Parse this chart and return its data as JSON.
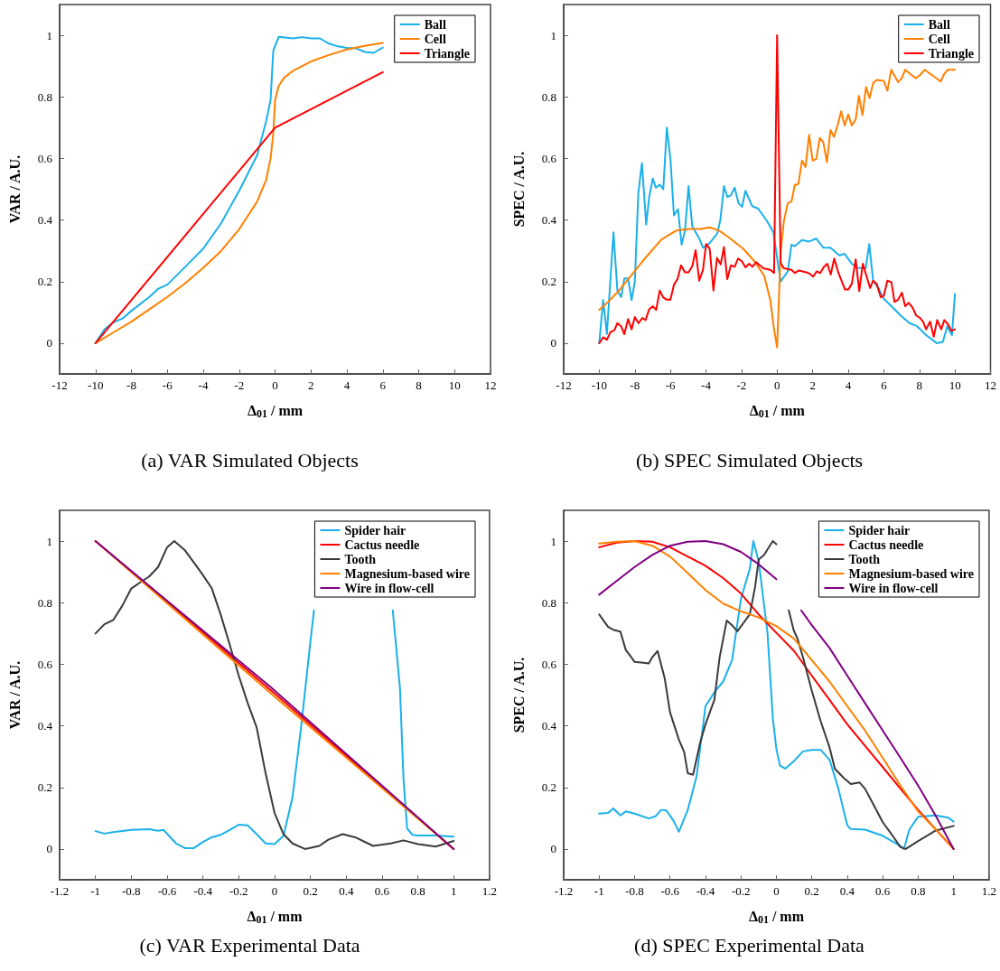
{
  "chart_data": [
    {
      "type": "line",
      "title": "(a) VAR Simulated Objects",
      "xlabel": "Δ$_{01}$ / mm",
      "ylabel": "VAR / A.U.",
      "xlim": [
        -12,
        12
      ],
      "xticks": [
        -12,
        -10,
        -8,
        -6,
        -4,
        -2,
        0,
        2,
        4,
        6,
        8,
        10,
        12
      ],
      "ylim": [
        -0.1,
        1.1
      ],
      "yticks": [
        0,
        0.2,
        0.4,
        0.6,
        0.8,
        1
      ],
      "grid": false,
      "legend": "top right",
      "line_style": "solid",
      "series": [
        {
          "name": "Ball",
          "color": "#1ab0ea",
          "x": [
            -10,
            -9.5,
            -9,
            -8.5,
            -8,
            -7,
            -6.5,
            -6,
            -5,
            -4,
            -3,
            -2,
            -1,
            -0.5,
            -0.25,
            -0.1,
            0.2,
            1,
            1.5,
            2,
            2.5,
            3,
            3.5,
            4,
            4.5,
            5,
            5.5,
            6
          ],
          "values": [
            0,
            0.045,
            0.068,
            0.08,
            0.105,
            0.15,
            0.177,
            0.19,
            0.248,
            0.307,
            0.39,
            0.495,
            0.61,
            0.72,
            0.79,
            0.95,
            0.995,
            0.99,
            0.994,
            0.99,
            0.99,
            0.973,
            0.964,
            0.959,
            0.958,
            0.946,
            0.943,
            0.96
          ]
        },
        {
          "name": "Cell",
          "color": "#ff8000",
          "x": [
            -10,
            -9,
            -8,
            -7,
            -6,
            -5,
            -4,
            -3,
            -2,
            -1,
            -0.5,
            -0.25,
            -0.1,
            0,
            0.2,
            0.5,
            1,
            2,
            3,
            4,
            5,
            6
          ],
          "values": [
            0,
            0.035,
            0.07,
            0.11,
            0.15,
            0.195,
            0.245,
            0.3,
            0.37,
            0.46,
            0.53,
            0.6,
            0.68,
            0.79,
            0.835,
            0.862,
            0.885,
            0.915,
            0.936,
            0.954,
            0.966,
            0.975
          ]
        },
        {
          "name": "Triangle",
          "color": "#ff0000",
          "x": [
            -10,
            0,
            6
          ],
          "values": [
            0,
            0.7,
            0.88
          ]
        }
      ]
    },
    {
      "type": "line",
      "title": "(b) SPEC Simulated Objects",
      "xlabel": "Δ$_{01}$ / mm",
      "ylabel": "SPEC / A.U.",
      "xlim": [
        -12,
        12
      ],
      "xticks": [
        -12,
        -10,
        -8,
        -6,
        -4,
        -2,
        0,
        2,
        4,
        6,
        8,
        10,
        12
      ],
      "ylim": [
        -0.1,
        1.1
      ],
      "yticks": [
        0,
        0.2,
        0.4,
        0.6,
        0.8,
        1
      ],
      "grid": false,
      "legend": "top right",
      "line_style": "solid",
      "series": [
        {
          "name": "Ball",
          "color": "#1ab0ea",
          "x": [
            -10,
            -9.78,
            -9.57,
            -9.2,
            -8.98,
            -8.77,
            -8.59,
            -8.38,
            -8.18,
            -8,
            -7.8,
            -7.6,
            -7.36,
            -7.19,
            -6.99,
            -6.82,
            -6.6,
            -6.4,
            -6.2,
            -6,
            -5.8,
            -5.57,
            -5.37,
            -5.18,
            -4.98,
            -4.77,
            -4.38,
            -4.16,
            -3.79,
            -3.36,
            -3.19,
            -2.99,
            -2.8,
            -2.6,
            -2.39,
            -2.17,
            -1.97,
            -1.78,
            -1.4,
            -1.06,
            -0.55,
            -0.21,
            0.2,
            0.6,
            0.81,
            1,
            1.4,
            1.8,
            2.2,
            2.6,
            3,
            3.5,
            3.8,
            4.2,
            4.55,
            4.98,
            5.18,
            5.4,
            5.74,
            6,
            6.43,
            6.94,
            7.45,
            7.87,
            8.38,
            8.98,
            9.32,
            9.57,
            9.83,
            10
          ],
          "values": [
            0,
            0.14,
            0.03,
            0.36,
            0.17,
            0.15,
            0.21,
            0.21,
            0.14,
            0.2,
            0.49,
            0.585,
            0.385,
            0.475,
            0.535,
            0.505,
            0.515,
            0.5,
            0.7,
            0.6,
            0.415,
            0.435,
            0.32,
            0.365,
            0.51,
            0.38,
            0.34,
            0.31,
            0.325,
            0.357,
            0.4,
            0.51,
            0.475,
            0.48,
            0.505,
            0.455,
            0.443,
            0.495,
            0.445,
            0.437,
            0.395,
            0.36,
            0.2,
            0.233,
            0.32,
            0.315,
            0.335,
            0.33,
            0.34,
            0.31,
            0.31,
            0.285,
            0.29,
            0.258,
            0.245,
            0.243,
            0.322,
            0.203,
            0.174,
            0.144,
            0.12,
            0.09,
            0.065,
            0.055,
            0.026,
            0,
            0.004,
            0.055,
            0.026,
            0.16
          ]
        },
        {
          "name": "Cell",
          "color": "#ff8000",
          "x": [
            -10,
            -9.57,
            -8.9,
            -8.2,
            -7.36,
            -6.5,
            -5.66,
            -4.98,
            -4.3,
            -3.79,
            -3.28,
            -2.77,
            -1.91,
            -1.23,
            -0.72,
            -0.38,
            -0.17,
            0,
            0.2,
            0.38,
            0.6,
            0.81,
            1,
            1.2,
            1.4,
            1.6,
            1.8,
            2,
            2.2,
            2.4,
            2.6,
            2.8,
            3,
            3.2,
            3.4,
            3.6,
            3.8,
            4,
            4.2,
            4.42,
            4.6,
            4.8,
            5,
            5.2,
            5.4,
            5.6,
            6,
            6.2,
            6.42,
            6.8,
            7,
            7.2,
            7.8,
            8.05,
            8.3,
            9.2,
            9.4,
            9.6,
            10
          ],
          "values": [
            0.108,
            0.13,
            0.17,
            0.22,
            0.28,
            0.337,
            0.366,
            0.371,
            0.371,
            0.376,
            0.366,
            0.346,
            0.307,
            0.263,
            0.218,
            0.139,
            0.045,
            -0.014,
            0.297,
            0.396,
            0.455,
            0.46,
            0.514,
            0.517,
            0.593,
            0.572,
            0.677,
            0.593,
            0.598,
            0.667,
            0.652,
            0.588,
            0.692,
            0.67,
            0.707,
            0.753,
            0.707,
            0.743,
            0.707,
            0.727,
            0.803,
            0.741,
            0.832,
            0.796,
            0.845,
            0.855,
            0.852,
            0.82,
            0.888,
            0.848,
            0.86,
            0.888,
            0.86,
            0.872,
            0.888,
            0.85,
            0.875,
            0.888,
            0.888
          ]
        },
        {
          "name": "Triangle",
          "color": "#ff0000",
          "x": [
            -10,
            -9.78,
            -9.57,
            -9.37,
            -9.15,
            -8.98,
            -8.77,
            -8.59,
            -8.38,
            -8.18,
            -8,
            -7.79,
            -7.58,
            -7.4,
            -7.19,
            -6.99,
            -6.8,
            -6.6,
            -6.41,
            -6.2,
            -6,
            -5.8,
            -5.6,
            -5.4,
            -5.18,
            -4.98,
            -4.77,
            -4.58,
            -4.38,
            -4.17,
            -3.99,
            -3.79,
            -3.58,
            -3.38,
            -3.17,
            -2.99,
            -2.8,
            -2.6,
            -2.39,
            -2.19,
            -1.98,
            -1.78,
            -1.57,
            -1.39,
            -1.18,
            -0.97,
            -0.77,
            -0.38,
            -0.17,
            0,
            0.2,
            0.38,
            0.81,
            1,
            1.23,
            1.63,
            1.83,
            2.03,
            2.22,
            2.43,
            2.63,
            2.82,
            3.02,
            3.21,
            3.45,
            3.82,
            4,
            4.2,
            4.42,
            4.62,
            4.82,
            5,
            5.23,
            5.4,
            5.6,
            5.83,
            6,
            6.2,
            6.43,
            6.6,
            6.8,
            7.02,
            7.2,
            7.4,
            7.62,
            7.82,
            8.03,
            8.21,
            8.38,
            8.6,
            8.81,
            9,
            9.23,
            9.4,
            9.6,
            9.8,
            10
          ],
          "values": [
            0,
            0.019,
            0.011,
            0.036,
            0.042,
            0.065,
            0.055,
            0.029,
            0.078,
            0.045,
            0.085,
            0.065,
            0.082,
            0.075,
            0.11,
            0.12,
            0.108,
            0.171,
            0.149,
            0.141,
            0.141,
            0.19,
            0.208,
            0.253,
            0.23,
            0.23,
            0.25,
            0.302,
            0.203,
            0.238,
            0.322,
            0.307,
            0.171,
            0.277,
            0.256,
            0.312,
            0.208,
            0.253,
            0.248,
            0.275,
            0.266,
            0.246,
            0.258,
            0.248,
            0.263,
            0.253,
            0.243,
            0.238,
            0.228,
            1,
            0.26,
            0.243,
            0.238,
            0.228,
            0.236,
            0.23,
            0.226,
            0.216,
            0.233,
            0.228,
            0.248,
            0.258,
            0.223,
            0.275,
            0.228,
            0.174,
            0.174,
            0.193,
            0.272,
            0.169,
            0.258,
            0.223,
            0.179,
            0.203,
            0.193,
            0.149,
            0.154,
            0.203,
            0.198,
            0.134,
            0.141,
            0.164,
            0.12,
            0.131,
            0.115,
            0.09,
            0.082,
            0.07,
            0.045,
            0.07,
            0.021,
            0.075,
            0.045,
            0.075,
            0.062,
            0.04,
            0.045
          ]
        }
      ]
    },
    {
      "type": "line",
      "title": "(c) VAR Experimental Data",
      "xlabel": "Δ$_{01}$ / mm",
      "ylabel": "VAR / A.U.",
      "xlim": [
        -1.2,
        1.2
      ],
      "xticks": [
        -1.2,
        -1,
        -0.8,
        -0.6,
        -0.4,
        -0.2,
        0,
        0.2,
        0.4,
        0.6,
        0.8,
        1,
        1.2
      ],
      "ylim": [
        -0.1,
        1.1
      ],
      "yticks": [
        0,
        0.2,
        0.4,
        0.6,
        0.8,
        1
      ],
      "grid": false,
      "legend": "top right",
      "line_style": "solid",
      "series": [
        {
          "name": "Spider hair",
          "color": "#1ab0ea",
          "x": [
            -1,
            -0.95,
            -0.9,
            -0.8,
            -0.7,
            -0.65,
            -0.62,
            -0.55,
            -0.5,
            -0.45,
            -0.4,
            -0.35,
            -0.3,
            -0.25,
            -0.2,
            -0.15,
            -0.1,
            -0.05,
            0,
            0.05,
            0.1,
            0.15,
            0.2,
            0.22,
            0.45,
            0.66,
            0.7,
            0.72,
            0.74,
            0.77,
            0.8,
            0.9,
            1
          ],
          "values": [
            0.058,
            0.05,
            0.055,
            0.062,
            0.064,
            0.059,
            0.062,
            0.018,
            0.003,
            0.003,
            0.023,
            0.038,
            0.046,
            0.062,
            0.079,
            0.077,
            0.048,
            0.018,
            0.016,
            0.043,
            0.167,
            0.405,
            0.673,
            0.775,
            null,
            0.775,
            0.524,
            0.226,
            0.067,
            0.046,
            0.044,
            0.044,
            0.04
          ]
        },
        {
          "name": "Cactus needle",
          "color": "#ff0000",
          "x": [
            -1,
            0,
            1
          ],
          "values": [
            1,
            0.505,
            0
          ]
        },
        {
          "name": "Tooth",
          "color": "#3a3a3a",
          "x": [
            -1,
            -0.95,
            -0.9,
            -0.85,
            -0.8,
            -0.75,
            -0.7,
            -0.65,
            -0.6,
            -0.56,
            -0.5,
            -0.45,
            -0.4,
            -0.35,
            -0.3,
            -0.25,
            -0.2,
            -0.15,
            -0.1,
            -0.05,
            0,
            0.05,
            0.1,
            0.17,
            0.25,
            0.3,
            0.38,
            0.45,
            0.55,
            0.65,
            0.72,
            0.8,
            0.9,
            1
          ],
          "values": [
            0.7,
            0.73,
            0.744,
            0.79,
            0.846,
            0.866,
            0.885,
            0.916,
            0.98,
            1,
            0.97,
            0.93,
            0.89,
            0.846,
            0.76,
            0.663,
            0.563,
            0.474,
            0.395,
            0.246,
            0.117,
            0.048,
            0.018,
            0,
            0.01,
            0.03,
            0.048,
            0.038,
            0.01,
            0.018,
            0.028,
            0.016,
            0.008,
            0.026
          ]
        },
        {
          "name": "Magnesium-based wire",
          "color": "#ff8000",
          "x": [
            -1,
            0,
            1
          ],
          "values": [
            1,
            0.495,
            0
          ]
        },
        {
          "name": "Wire in flow-cell",
          "color": "#800080",
          "x": [
            -1,
            0,
            1
          ],
          "values": [
            1,
            0.515,
            0
          ]
        }
      ]
    },
    {
      "type": "line",
      "title": "(d) SPEC Experimental Data",
      "xlabel": "Δ$_{01}$ / mm",
      "ylabel": "SPEC / A.U.",
      "xlim": [
        -1.2,
        1.2
      ],
      "xticks": [
        -1.2,
        -1,
        -0.8,
        -0.6,
        -0.4,
        -0.2,
        0,
        0.2,
        0.4,
        0.6,
        0.8,
        1,
        1.2
      ],
      "ylim": [
        -0.1,
        1.1
      ],
      "yticks": [
        0,
        0.2,
        0.4,
        0.6,
        0.8,
        1
      ],
      "grid": false,
      "legend": "top right",
      "line_style": "solid",
      "series": [
        {
          "name": "Spider hair",
          "color": "#1ab0ea",
          "x": [
            -1,
            -0.95,
            -0.92,
            -0.88,
            -0.85,
            -0.8,
            -0.72,
            -0.68,
            -0.65,
            -0.62,
            -0.58,
            -0.55,
            -0.5,
            -0.45,
            -0.4,
            -0.35,
            -0.3,
            -0.25,
            -0.2,
            -0.15,
            -0.13,
            -0.1,
            -0.05,
            -0.02,
            0,
            0.02,
            0.05,
            0.1,
            0.15,
            0.2,
            0.25,
            0.3,
            0.35,
            0.4,
            0.42,
            0.5,
            0.6,
            0.7,
            0.72,
            0.75,
            0.8,
            0.9,
            0.97,
            1
          ],
          "values": [
            0.115,
            0.117,
            0.132,
            0.109,
            0.122,
            0.115,
            0.099,
            0.107,
            0.127,
            0.125,
            0.092,
            0.056,
            0.127,
            0.236,
            0.464,
            0.509,
            0.544,
            0.613,
            0.812,
            0.91,
            1,
            0.935,
            0.702,
            0.425,
            0.325,
            0.271,
            0.261,
            0.286,
            0.317,
            0.322,
            0.322,
            0.29,
            0.196,
            0.077,
            0.065,
            0.063,
            0.043,
            0.01,
            0,
            0.063,
            0.105,
            0.109,
            0.102,
            0.089
          ]
        },
        {
          "name": "Cactus needle",
          "color": "#ff0000",
          "x": [
            -1,
            -0.9,
            -0.8,
            -0.7,
            -0.6,
            -0.5,
            -0.4,
            -0.3,
            -0.2,
            -0.1,
            0,
            0.1,
            0.2,
            0.3,
            0.4,
            0.5,
            0.6,
            0.7,
            0.8,
            0.9,
            1
          ],
          "values": [
            0.98,
            0.995,
            1,
            0.998,
            0.98,
            0.95,
            0.92,
            0.88,
            0.83,
            0.762,
            0.702,
            0.643,
            0.563,
            0.484,
            0.405,
            0.335,
            0.266,
            0.196,
            0.127,
            0.063,
            0
          ]
        },
        {
          "name": "Tooth",
          "color": "#3a3a3a",
          "x": [
            -1,
            -0.95,
            -0.92,
            -0.88,
            -0.85,
            -0.8,
            -0.75,
            -0.72,
            -0.7,
            -0.67,
            -0.63,
            -0.6,
            -0.55,
            -0.52,
            -0.5,
            -0.47,
            -0.43,
            -0.4,
            -0.35,
            -0.32,
            -0.28,
            -0.25,
            -0.22,
            -0.15,
            -0.12,
            -0.1,
            -0.07,
            -0.02,
            0,
            0.04,
            0.07,
            0.097,
            0.12,
            0.15,
            0.2,
            0.25,
            0.3,
            0.33,
            0.38,
            0.42,
            0.47,
            0.5,
            0.55,
            0.6,
            0.65,
            0.7,
            0.73,
            0.8,
            0.9,
            1
          ],
          "values": [
            0.762,
            0.722,
            0.712,
            0.706,
            0.647,
            0.608,
            0.605,
            0.603,
            0.623,
            0.643,
            0.554,
            0.444,
            0.355,
            0.315,
            0.246,
            0.241,
            0.345,
            0.405,
            0.484,
            0.623,
            0.742,
            0.727,
            0.707,
            0.762,
            0.851,
            0.94,
            0.955,
            1,
            0.99,
            null,
            0.775,
            0.712,
            0.682,
            0.623,
            0.514,
            0.415,
            0.33,
            0.261,
            0.231,
            0.211,
            0.216,
            0.196,
            0.142,
            0.087,
            0.048,
            0.006,
            0,
            0.026,
            0.06,
            0.075
          ]
        },
        {
          "name": "Magnesium-based wire",
          "color": "#ff8000",
          "x": [
            -1,
            -0.9,
            -0.8,
            -0.7,
            -0.6,
            -0.5,
            -0.4,
            -0.3,
            -0.2,
            -0.1,
            0,
            0.1,
            0.2,
            0.3,
            0.4,
            0.5,
            0.6,
            0.7,
            0.8,
            0.9,
            1
          ],
          "values": [
            0.992,
            0.998,
            1,
            0.985,
            0.95,
            0.896,
            0.841,
            0.797,
            0.772,
            0.752,
            0.724,
            0.683,
            0.613,
            0.544,
            0.464,
            0.385,
            0.296,
            0.206,
            0.122,
            0.063,
            0
          ]
        },
        {
          "name": "Wire in flow-cell",
          "color": "#800080",
          "x": [
            -1,
            -0.9,
            -0.8,
            -0.7,
            -0.6,
            -0.5,
            -0.4,
            -0.3,
            -0.2,
            -0.1,
            0,
            0.07,
            0.14,
            0.2,
            0.3,
            0.4,
            0.5,
            0.6,
            0.7,
            0.8,
            0.9,
            1
          ],
          "values": [
            0.826,
            0.871,
            0.916,
            0.955,
            0.985,
            0.998,
            1,
            0.99,
            0.965,
            0.925,
            0.876,
            null,
            0.775,
            0.727,
            0.653,
            0.563,
            0.474,
            0.385,
            0.296,
            0.206,
            0.107,
            0
          ]
        }
      ]
    }
  ]
}
